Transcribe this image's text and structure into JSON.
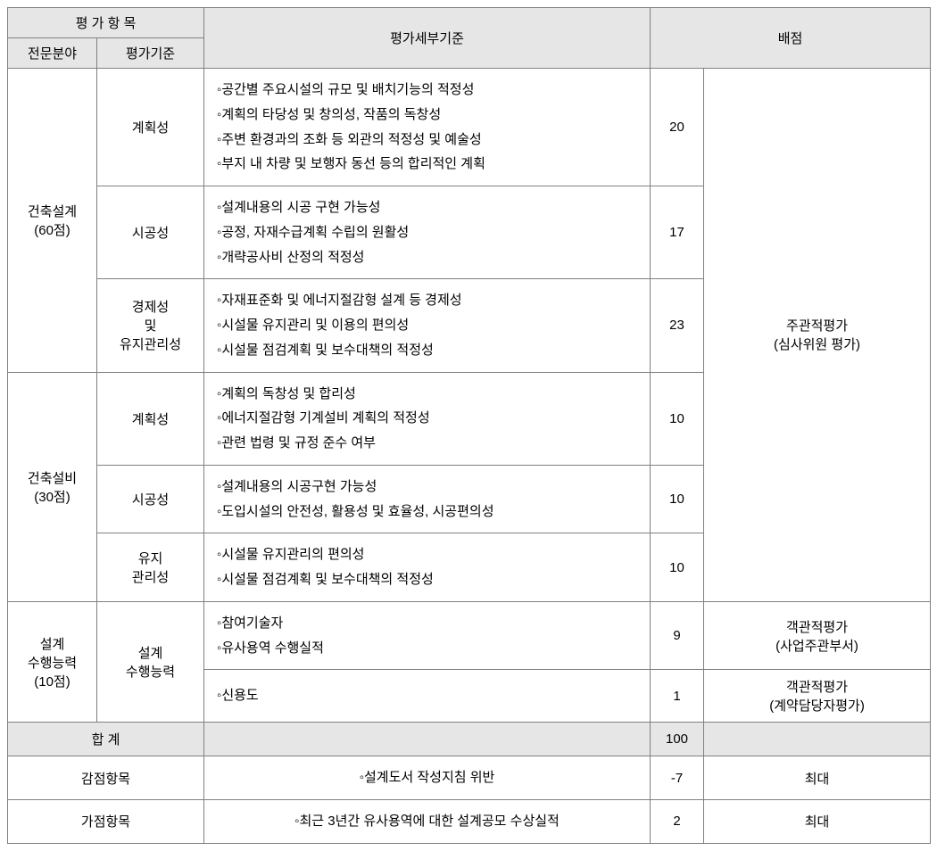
{
  "headers": {
    "evalItem": "평 가 항 목",
    "field": "전문분야",
    "criteria": "평가기준",
    "detail": "평가세부기준",
    "score": "배점"
  },
  "groups": [
    {
      "field": "건축설계\n(60점)",
      "rows": [
        {
          "criteria": "계획성",
          "detail": "◦공간별 주요시설의 규모 및 배치기능의 적정성\n◦계획의 타당성 및 창의성, 작품의 독창성\n◦주변 환경과의 조화 등 외관의 적정성 및 예술성\n◦부지 내 차량 및 보행자 동선 등의 합리적인 계획",
          "score": "20"
        },
        {
          "criteria": "시공성",
          "detail": "◦설계내용의 시공 구현 가능성\n◦공정, 자재수급계획 수립의 원활성\n◦개략공사비 산정의 적정성",
          "score": "17"
        },
        {
          "criteria": "경제성\n및\n유지관리성",
          "detail": "◦자재표준화 및 에너지절감형 설계 등 경제성\n◦시설물 유지관리 및 이용의 편의성\n◦시설물 점검계획 및 보수대책의 적정성",
          "score": "23"
        }
      ]
    },
    {
      "field": "건축설비\n(30점)",
      "rows": [
        {
          "criteria": "계획성",
          "detail": "◦계획의 독창성 및 합리성\n◦에너지절감형 기계설비 계획의 적정성\n◦관련 법령 및 규정 준수 여부",
          "score": "10"
        },
        {
          "criteria": "시공성",
          "detail": "◦설계내용의 시공구현 가능성\n◦도입시설의 안전성, 활용성 및 효율성, 시공편의성",
          "score": "10"
        },
        {
          "criteria": "유지\n관리성",
          "detail": "◦시설물 유지관리의 편의성\n◦시설물 점검계획 및 보수대책의 적정성",
          "score": "10"
        }
      ]
    },
    {
      "field": "설계\n수행능력\n(10점)",
      "criteria": "설계\n수행능력",
      "rows": [
        {
          "detail": "◦참여기술자\n◦유사용역 수행실적",
          "score": "9",
          "evalType": "객관적평가\n(사업주관부서)"
        },
        {
          "detail": "◦신용도",
          "score": "1",
          "evalType": "객관적평가\n(계약담당자평가)"
        }
      ]
    }
  ],
  "subjectiveEval": "주관적평가\n(심사위원 평가)",
  "sum": {
    "label": "합  계",
    "score": "100"
  },
  "deduction": {
    "label": "감점항목",
    "detail": "◦설계도서 작성지침 위반",
    "score": "-7",
    "note": "최대"
  },
  "bonus": {
    "label": "가점항목",
    "detail": "◦최근 3년간 유사용역에 대한 설계공모 수상실적",
    "score": "2",
    "note": "최대"
  }
}
